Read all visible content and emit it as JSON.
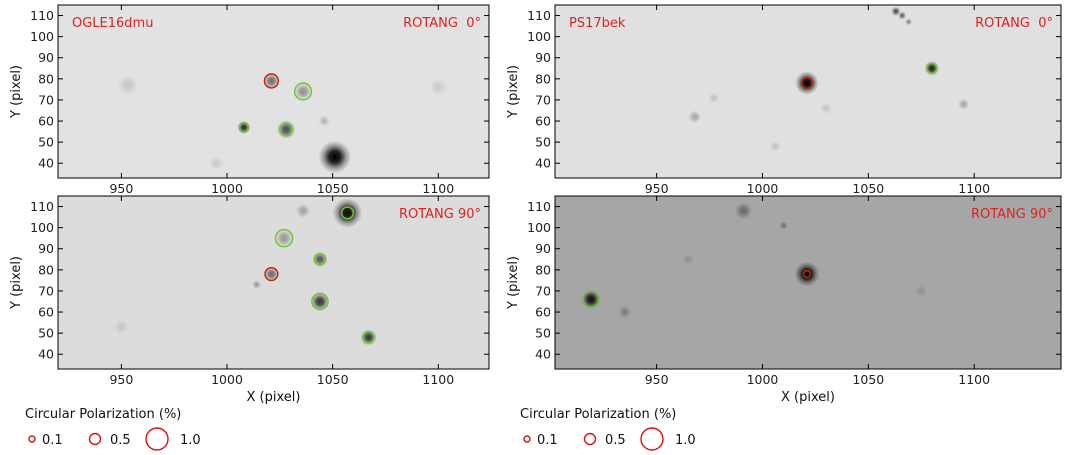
{
  "panels": [
    {
      "id": "ogle-top",
      "target_label": "OGLE16dmu",
      "rotang_label": "ROTANG  0°",
      "ylabel": "Y (pixel)",
      "xlabel": "",
      "xlim": [
        920,
        1124
      ],
      "ylim": [
        33,
        115
      ],
      "xticks": [
        950,
        1000,
        1050,
        1100
      ],
      "yticks": [
        40,
        50,
        60,
        70,
        80,
        90,
        100,
        110
      ],
      "show_xtick_labels": true,
      "background": "#e2e2e2",
      "stars": [
        {
          "x": 1051,
          "y": 43,
          "r": 5.5,
          "s": 1.0
        },
        {
          "x": 1028,
          "y": 56,
          "r": 3.2,
          "s": 0.65
        },
        {
          "x": 1008,
          "y": 57,
          "r": 2.2,
          "s": 0.8
        },
        {
          "x": 1021,
          "y": 79,
          "r": 2.8,
          "s": 0.5
        },
        {
          "x": 1036,
          "y": 74,
          "r": 3.0,
          "s": 0.35
        },
        {
          "x": 1046,
          "y": 60,
          "r": 2.0,
          "s": 0.2
        },
        {
          "x": 953,
          "y": 77,
          "r": 3.5,
          "s": 0.12
        },
        {
          "x": 1100,
          "y": 76,
          "r": 3.0,
          "s": 0.1
        },
        {
          "x": 995,
          "y": 40,
          "r": 2.5,
          "s": 0.1
        }
      ],
      "circles": [
        {
          "x": 1021,
          "y": 79,
          "pol": 0.45,
          "color": "#cc2200"
        },
        {
          "x": 1036,
          "y": 74,
          "pol": 0.58,
          "color": "#66cc22"
        },
        {
          "x": 1028,
          "y": 56,
          "pol": 0.4,
          "color": "#66cc22"
        },
        {
          "x": 1008,
          "y": 57,
          "pol": 0.25,
          "color": "#66cc22"
        }
      ]
    },
    {
      "id": "ogle-bottom",
      "target_label": "",
      "rotang_label": "ROTANG 90°",
      "ylabel": "Y (pixel)",
      "xlabel": "X (pixel)",
      "xlim": [
        920,
        1124
      ],
      "ylim": [
        33,
        115
      ],
      "xticks": [
        950,
        1000,
        1050,
        1100
      ],
      "yticks": [
        40,
        50,
        60,
        70,
        80,
        90,
        100,
        110
      ],
      "show_xtick_labels": true,
      "background": "#dcdcdc",
      "stars": [
        {
          "x": 1057,
          "y": 107,
          "r": 5.0,
          "s": 0.95
        },
        {
          "x": 1044,
          "y": 65,
          "r": 3.2,
          "s": 0.75
        },
        {
          "x": 1067,
          "y": 48,
          "r": 2.8,
          "s": 0.75
        },
        {
          "x": 1044,
          "y": 85,
          "r": 2.6,
          "s": 0.6
        },
        {
          "x": 1021,
          "y": 78,
          "r": 2.6,
          "s": 0.5
        },
        {
          "x": 1027,
          "y": 95,
          "r": 3.0,
          "s": 0.3
        },
        {
          "x": 1036,
          "y": 108,
          "r": 2.5,
          "s": 0.25
        },
        {
          "x": 1014,
          "y": 73,
          "r": 1.5,
          "s": 0.3
        },
        {
          "x": 950,
          "y": 53,
          "r": 2.5,
          "s": 0.1
        }
      ],
      "circles": [
        {
          "x": 1021,
          "y": 78,
          "pol": 0.4,
          "color": "#cc2200"
        },
        {
          "x": 1027,
          "y": 95,
          "pol": 0.6,
          "color": "#66cc22"
        },
        {
          "x": 1057,
          "y": 107,
          "pol": 0.35,
          "color": "#66cc22"
        },
        {
          "x": 1044,
          "y": 85,
          "pol": 0.33,
          "color": "#66cc22"
        },
        {
          "x": 1044,
          "y": 65,
          "pol": 0.55,
          "color": "#66cc22"
        },
        {
          "x": 1067,
          "y": 48,
          "pol": 0.33,
          "color": "#66cc22"
        }
      ]
    },
    {
      "id": "ps-top",
      "target_label": "PS17bek",
      "rotang_label": "ROTANG  0°",
      "ylabel": "Y (pixel)",
      "xlabel": "",
      "xlim": [
        902,
        1141
      ],
      "ylim": [
        33,
        115
      ],
      "xticks": [
        950,
        1000,
        1050,
        1100
      ],
      "yticks": [
        40,
        50,
        60,
        70,
        80,
        90,
        100,
        110
      ],
      "show_xtick_labels": true,
      "background": "#e0e0e0",
      "stars": [
        {
          "x": 1021,
          "y": 78,
          "r": 4.0,
          "s": 1.0
        },
        {
          "x": 1080,
          "y": 85,
          "r": 2.5,
          "s": 0.85
        },
        {
          "x": 968,
          "y": 62,
          "r": 2.2,
          "s": 0.25
        },
        {
          "x": 1095,
          "y": 68,
          "r": 2.0,
          "s": 0.25
        },
        {
          "x": 1030,
          "y": 66,
          "r": 2.0,
          "s": 0.12
        },
        {
          "x": 1006,
          "y": 48,
          "r": 2.0,
          "s": 0.12
        },
        {
          "x": 977,
          "y": 71,
          "r": 2.0,
          "s": 0.12
        },
        {
          "x": 1063,
          "y": 112,
          "r": 1.6,
          "s": 0.65
        },
        {
          "x": 1066,
          "y": 110,
          "r": 1.4,
          "s": 0.55
        },
        {
          "x": 1069,
          "y": 107,
          "r": 1.2,
          "s": 0.4
        }
      ],
      "circles": [
        {
          "x": 1021,
          "y": 78,
          "pol": 0.3,
          "color": "#cc2200"
        },
        {
          "x": 1080,
          "y": 85,
          "pol": 0.27,
          "color": "#66cc22"
        }
      ]
    },
    {
      "id": "ps-bottom",
      "target_label": "",
      "rotang_label": "ROTANG 90°",
      "ylabel": "Y (pixel)",
      "xlabel": "X (pixel)",
      "xlim": [
        902,
        1141
      ],
      "ylim": [
        33,
        115
      ],
      "xticks": [
        950,
        1000,
        1050,
        1100
      ],
      "yticks": [
        40,
        50,
        60,
        70,
        80,
        90,
        100,
        110
      ],
      "show_xtick_labels": true,
      "background": "#a6a6a6",
      "stars": [
        {
          "x": 1021,
          "y": 78,
          "r": 4.2,
          "s": 1.0
        },
        {
          "x": 919,
          "y": 66,
          "r": 3.2,
          "s": 0.9
        },
        {
          "x": 991,
          "y": 108,
          "r": 3.0,
          "s": 0.35
        },
        {
          "x": 935,
          "y": 60,
          "r": 2.2,
          "s": 0.25
        },
        {
          "x": 1010,
          "y": 101,
          "r": 1.5,
          "s": 0.3
        },
        {
          "x": 1075,
          "y": 70,
          "r": 2.0,
          "s": 0.12
        },
        {
          "x": 965,
          "y": 85,
          "r": 2.0,
          "s": 0.12
        }
      ],
      "circles": [
        {
          "x": 1021,
          "y": 78,
          "pol": 0.13,
          "color": "#cc2200"
        },
        {
          "x": 919,
          "y": 66,
          "pol": 0.55,
          "color": "#66cc22"
        }
      ]
    }
  ],
  "legends": [
    {
      "id": "legend-left",
      "title": "Circular Polarization (%)",
      "items": [
        {
          "label": "0.1",
          "pol": 0.1
        },
        {
          "label": "0.5",
          "pol": 0.5
        },
        {
          "label": "1.0",
          "pol": 1.0
        }
      ],
      "circle_color": "#dd1111"
    },
    {
      "id": "legend-right",
      "title": "Circular Polarization (%)",
      "items": [
        {
          "label": "0.1",
          "pol": 0.1
        },
        {
          "label": "0.5",
          "pol": 0.5
        },
        {
          "label": "1.0",
          "pol": 1.0
        }
      ],
      "circle_color": "#dd1111"
    }
  ],
  "colors": {
    "label_red": "#dd2222",
    "axis": "#000000"
  }
}
